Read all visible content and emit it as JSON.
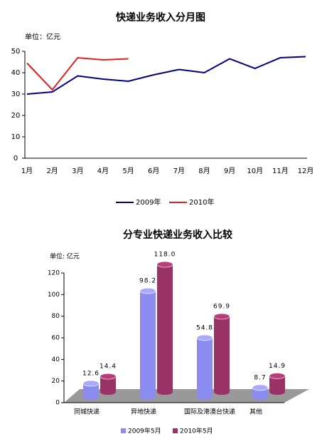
{
  "chart_data": [
    {
      "type": "line",
      "title": "快递业务收入分月图",
      "unit": "单位：亿元",
      "categories": [
        "1月",
        "2月",
        "3月",
        "4月",
        "5月",
        "6月",
        "7月",
        "8月",
        "9月",
        "10月",
        "11月",
        "12月"
      ],
      "series": [
        {
          "name": "2009年",
          "color": "#000080",
          "values": [
            30,
            31,
            38.5,
            37,
            36,
            39,
            41.5,
            40,
            46.5,
            42,
            47,
            47.5
          ]
        },
        {
          "name": "2010年",
          "color": "#e02020",
          "values": [
            44.5,
            32,
            47,
            46,
            46.5,
            null,
            null,
            null,
            null,
            null,
            null,
            null
          ]
        }
      ],
      "ylim": [
        0,
        50
      ],
      "yticks": [
        0,
        10,
        20,
        30,
        40,
        50
      ],
      "grid": false,
      "legend": "bottom"
    },
    {
      "type": "bar3d",
      "title": "分专业快递业务收入比较",
      "unit": "单位: 亿元",
      "categories": [
        "同城快递",
        "异地快递",
        "国际及港澳台快递",
        "其他"
      ],
      "series": [
        {
          "name": "2009年5月",
          "color": "#8c8cf0",
          "values": [
            12.6,
            98.2,
            54.8,
            8.7
          ],
          "value_labels": [
            "12.6",
            "98.2",
            "54.8",
            "8.7"
          ]
        },
        {
          "name": "2010年5月",
          "color": "#993366",
          "values": [
            14.4,
            118,
            69.9,
            14.9
          ],
          "value_labels": [
            "14.4",
            "118.0",
            "69.9",
            "14.9"
          ]
        }
      ],
      "ylim": [
        0,
        120
      ],
      "yticks": [
        0,
        20,
        40,
        60,
        80,
        100,
        120
      ],
      "grid": false,
      "legend": "bottom"
    }
  ]
}
